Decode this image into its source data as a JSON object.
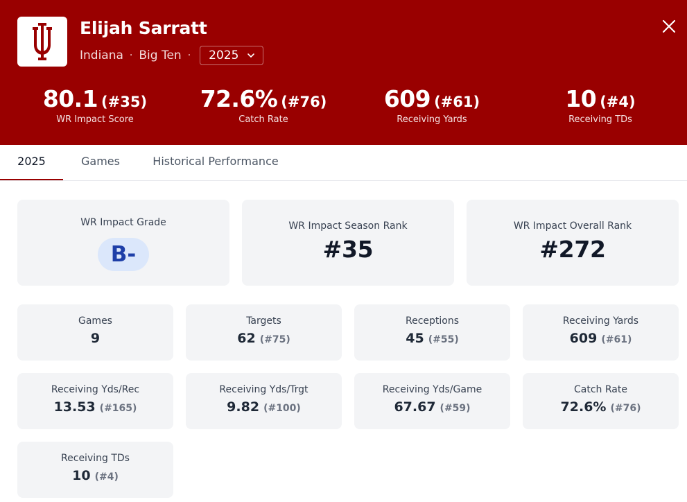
{
  "player": {
    "name": "Elijah Sarratt",
    "team": "Indiana",
    "conference": "Big Ten",
    "separator": "·",
    "season": "2025"
  },
  "colors": {
    "primary": "#990000",
    "grade_bg": "#dbe7fb",
    "grade_text": "#1e3fa8"
  },
  "icons": {
    "logo": "indiana-iu-logo",
    "close": "close-icon",
    "season_chevron": "chevron-down-icon"
  },
  "header_stats": [
    {
      "value": "80.1",
      "rank": "(#35)",
      "label": "WR Impact Score"
    },
    {
      "value": "72.6%",
      "rank": "(#76)",
      "label": "Catch Rate"
    },
    {
      "value": "609",
      "rank": "(#61)",
      "label": "Receiving Yards"
    },
    {
      "value": "10",
      "rank": "(#4)",
      "label": "Receiving TDs"
    }
  ],
  "tabs": [
    {
      "label": "2025",
      "active": true
    },
    {
      "label": "Games",
      "active": false
    },
    {
      "label": "Historical Performance",
      "active": false
    }
  ],
  "summary": {
    "grade": {
      "title": "WR Impact Grade",
      "value": "B-"
    },
    "season_rank": {
      "title": "WR Impact Season Rank",
      "value": "#35"
    },
    "overall_rank": {
      "title": "WR Impact Overall Rank",
      "value": "#272"
    }
  },
  "metrics": [
    {
      "title": "Games",
      "value": "9",
      "rank": ""
    },
    {
      "title": "Targets",
      "value": "62",
      "rank": "(#75)"
    },
    {
      "title": "Receptions",
      "value": "45",
      "rank": "(#55)"
    },
    {
      "title": "Receiving Yards",
      "value": "609",
      "rank": "(#61)"
    },
    {
      "title": "Receiving Yds/Rec",
      "value": "13.53",
      "rank": "(#165)"
    },
    {
      "title": "Receiving Yds/Trgt",
      "value": "9.82",
      "rank": "(#100)"
    },
    {
      "title": "Receiving Yds/Game",
      "value": "67.67",
      "rank": "(#59)"
    },
    {
      "title": "Catch Rate",
      "value": "72.6%",
      "rank": "(#76)"
    },
    {
      "title": "Receiving TDs",
      "value": "10",
      "rank": "(#4)"
    }
  ]
}
